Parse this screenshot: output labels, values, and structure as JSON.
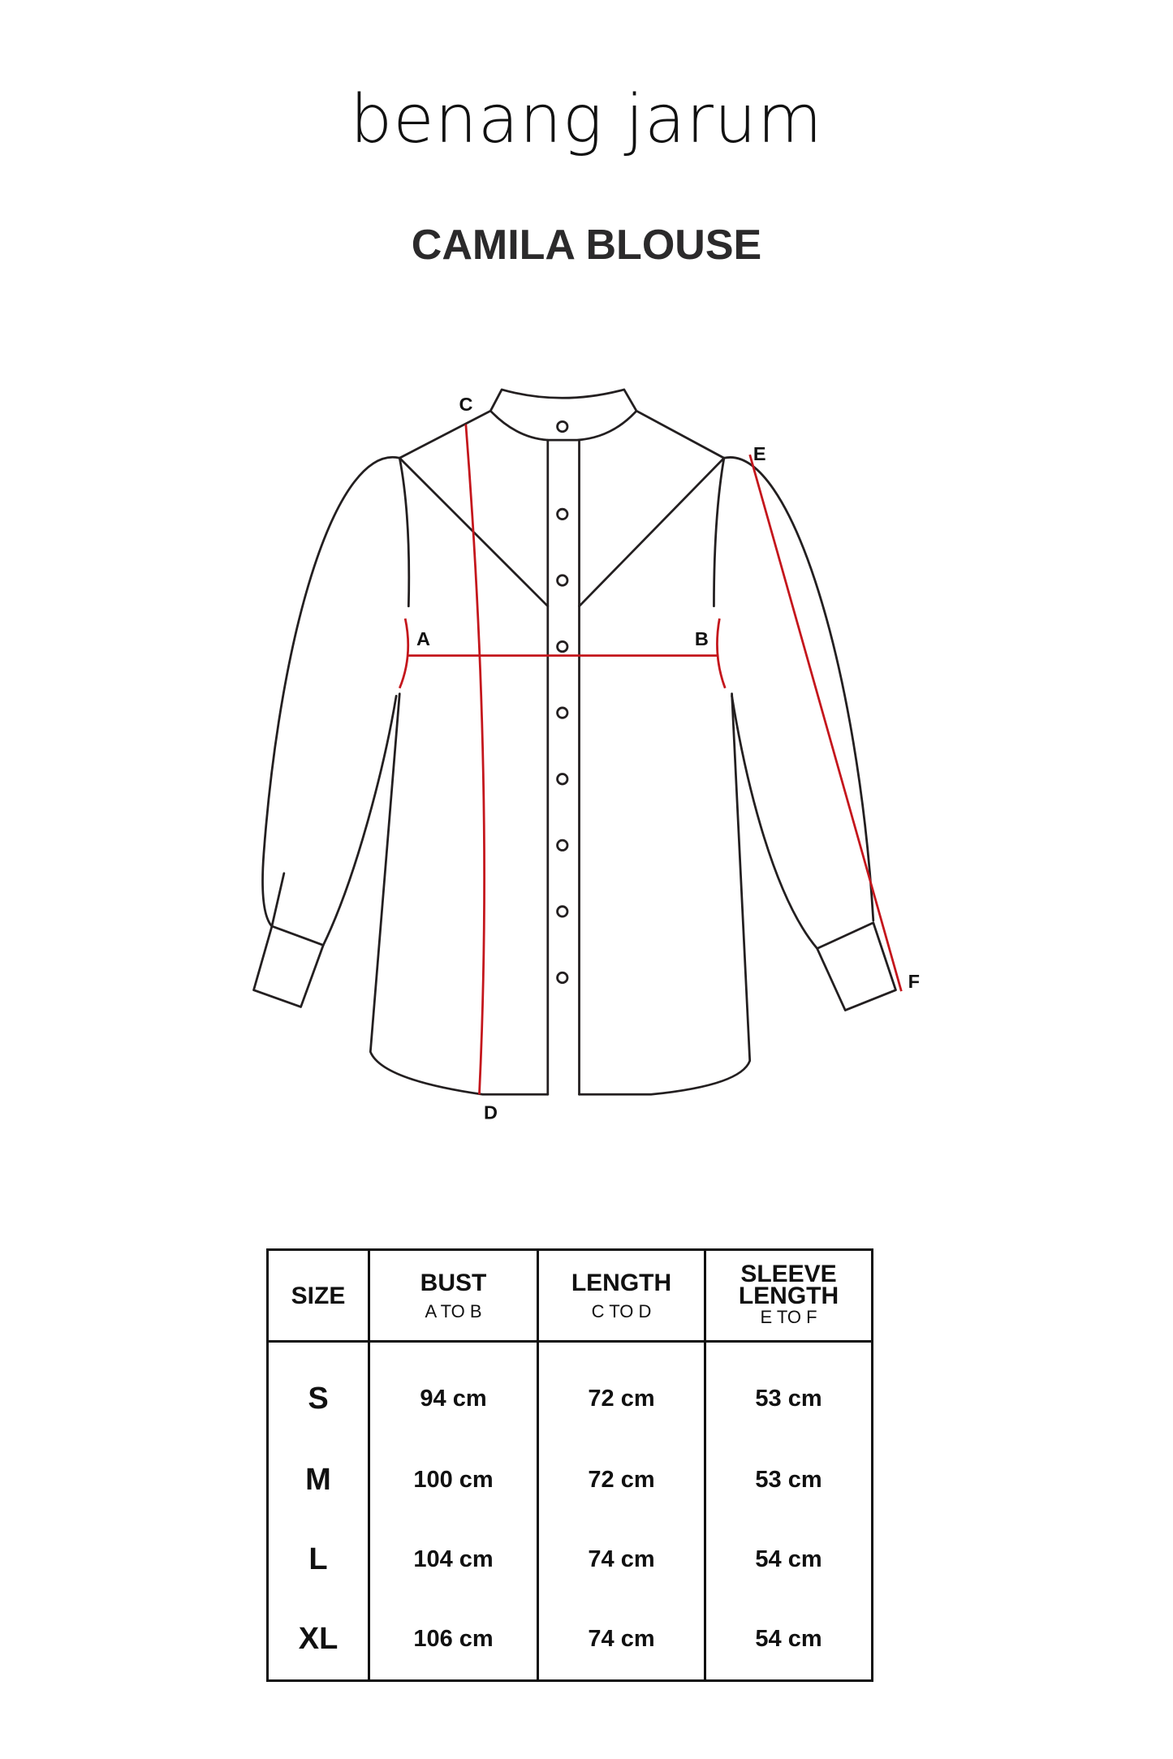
{
  "brand": {
    "logo_text": "benang jarum"
  },
  "title": "CAMILA BLOUSE",
  "diagram": {
    "labels": {
      "a": "A",
      "b": "B",
      "c": "C",
      "d": "D",
      "e": "E",
      "f": "F"
    },
    "measure_color": "#c4161c",
    "line_color": "#231f20"
  },
  "table": {
    "headers": [
      {
        "label": "SIZE",
        "sub": ""
      },
      {
        "label": "BUST",
        "sub": "A TO B"
      },
      {
        "label": "LENGTH",
        "sub": "C TO D"
      },
      {
        "label": "SLEEVE LENGTH",
        "sub": "E TO F"
      }
    ],
    "rows": [
      {
        "size": "S",
        "bust": "94 cm",
        "length": "72 cm",
        "sleeve": "53 cm"
      },
      {
        "size": "M",
        "bust": "100 cm",
        "length": "72 cm",
        "sleeve": "53 cm"
      },
      {
        "size": "L",
        "bust": "104 cm",
        "length": "74 cm",
        "sleeve": "54 cm"
      },
      {
        "size": "XL",
        "bust": "106 cm",
        "length": "74 cm",
        "sleeve": "54 cm"
      }
    ]
  }
}
